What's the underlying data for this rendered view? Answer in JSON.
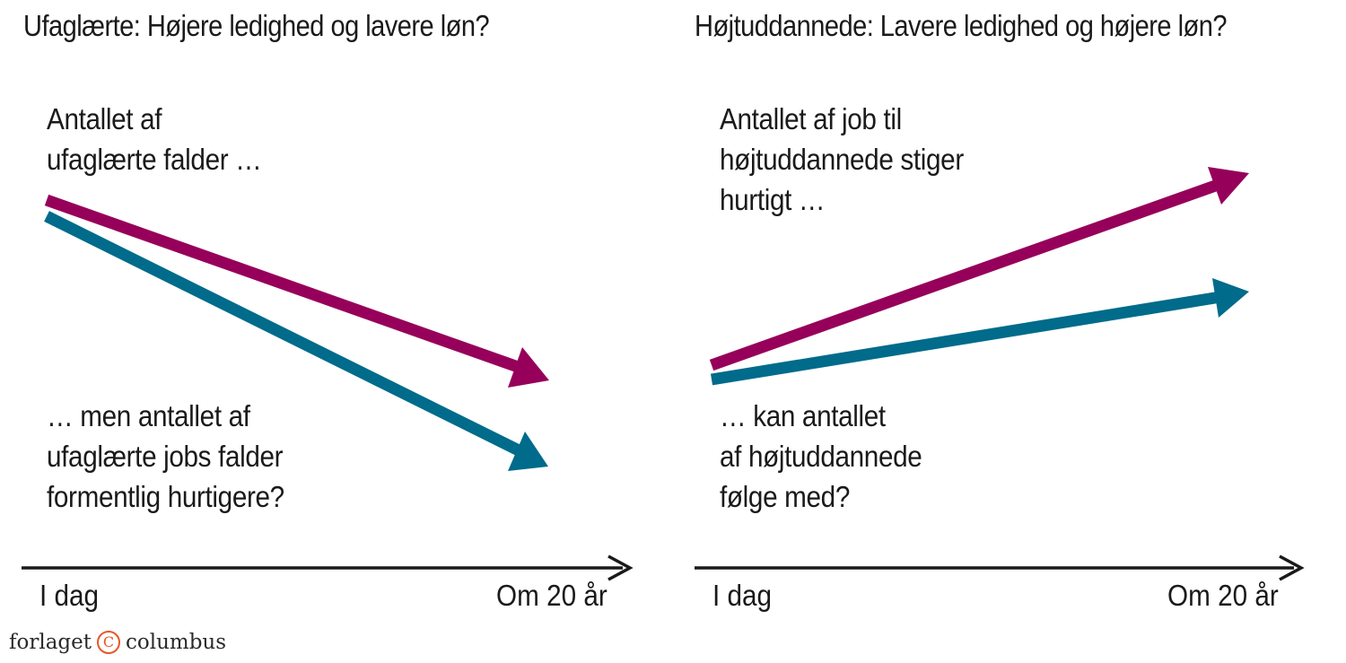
{
  "colors": {
    "magenta": "#96005a",
    "teal": "#006b8a",
    "axis": "#1a1a1a",
    "logo_accent": "#e8562a"
  },
  "panels": [
    {
      "title": "Ufaglærte: Højere ledighed og lavere løn?",
      "top_label": [
        "Antallet af",
        "ufaglærte falder …"
      ],
      "bottom_label": [
        "… men antallet af",
        "ufaglærte jobs falder",
        "formentlig hurtigere?"
      ],
      "axis_start": "I dag",
      "axis_end": "Om 20 år",
      "magenta_trend": [
        1,
        0.55
      ],
      "teal_trend": [
        1,
        0.25
      ]
    },
    {
      "title": "Højtuddannede: Lavere ledighed og højere løn?",
      "top_label": [
        "Antallet af job til",
        "højtuddannede stiger",
        "hurtigt …"
      ],
      "bottom_label": [
        "… kan antallet",
        "af højtuddannede",
        "følge med?"
      ],
      "axis_start": "I dag",
      "axis_end": "Om 20 år",
      "magenta_trend": [
        1,
        2.1
      ],
      "teal_trend": [
        1,
        1.5
      ]
    }
  ],
  "logo": {
    "prefix": "forlaget",
    "mark": "C",
    "suffix": "columbus"
  }
}
